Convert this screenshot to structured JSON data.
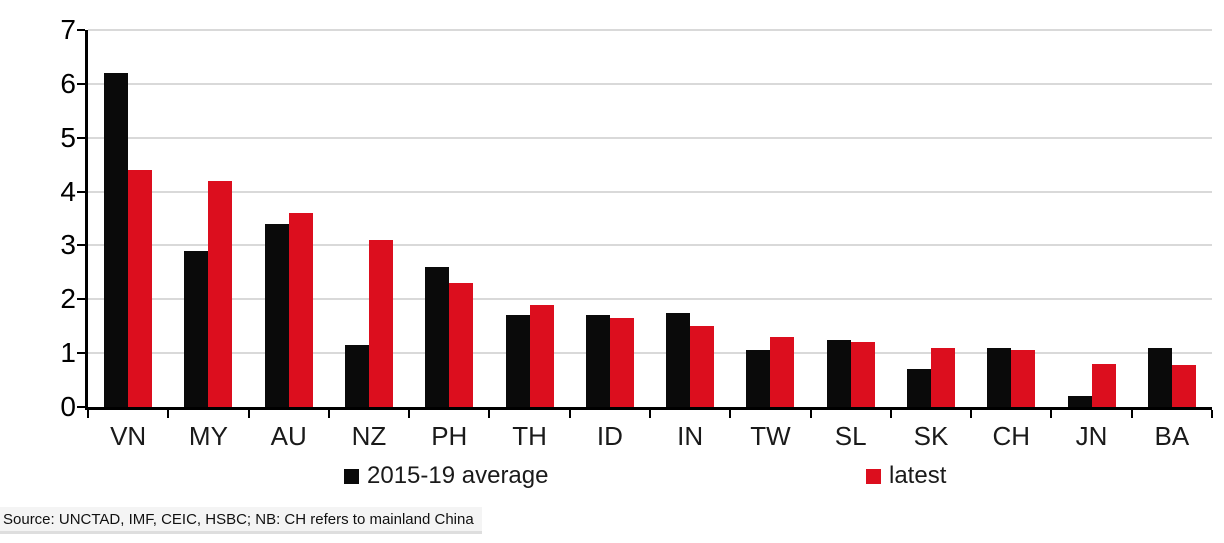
{
  "chart_data": {
    "type": "bar",
    "title": "",
    "xlabel": "",
    "ylabel": "",
    "categories": [
      "VN",
      "MY",
      "AU",
      "NZ",
      "PH",
      "TH",
      "ID",
      "IN",
      "TW",
      "SL",
      "SK",
      "CH",
      "JN",
      "BA"
    ],
    "series": [
      {
        "name": "2015-19 average",
        "color": "#0a0a0a",
        "values": [
          6.2,
          2.9,
          3.4,
          1.15,
          2.6,
          1.7,
          1.7,
          1.75,
          1.05,
          1.25,
          0.7,
          1.1,
          0.2,
          1.1
        ]
      },
      {
        "name": "latest",
        "color": "#dc0e1e",
        "values": [
          4.4,
          4.2,
          3.6,
          3.1,
          2.3,
          1.9,
          1.65,
          1.5,
          1.3,
          1.2,
          1.1,
          1.05,
          0.8,
          0.78
        ]
      }
    ],
    "ylim": [
      0,
      7
    ],
    "yticks": [
      0,
      1,
      2,
      3,
      4,
      5,
      6,
      7
    ],
    "grid": true,
    "legend_position": "bottom"
  },
  "colors": {
    "gridline": "#d9d9d9",
    "axis": "#000000",
    "background": "#ffffff"
  },
  "source_note": "Source: UNCTAD, IMF, CEIC, HSBC; NB: CH refers to mainland China"
}
